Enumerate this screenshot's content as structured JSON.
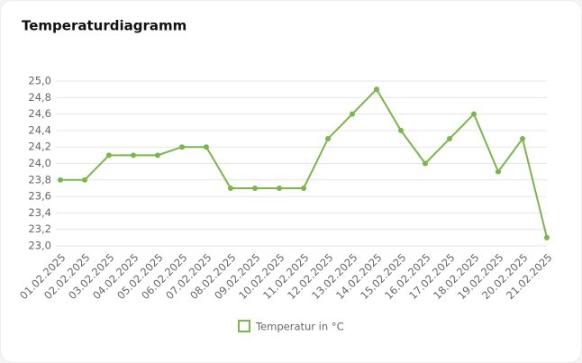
{
  "chart_data": {
    "type": "line",
    "title": "Temperaturdiagramm",
    "categories": [
      "01.02.2025",
      "02.02.2025",
      "03.02.2025",
      "04.02.2025",
      "05.02.2025",
      "06.02.2025",
      "07.02.2025",
      "08.02.2025",
      "09.02.2025",
      "10.02.2025",
      "11.02.2025",
      "12.02.2025",
      "13.02.2025",
      "14.02.2025",
      "15.02.2025",
      "16.02.2025",
      "17.02.2025",
      "18.02.2025",
      "19.02.2025",
      "20.02.2025",
      "21.02.2025"
    ],
    "series": [
      {
        "name": "Temperatur in °C",
        "color": "#7ab648",
        "values": [
          23.8,
          23.8,
          24.1,
          24.1,
          24.1,
          24.2,
          24.2,
          23.7,
          23.7,
          23.7,
          23.7,
          24.3,
          24.6,
          24.9,
          24.4,
          24.0,
          24.3,
          24.6,
          23.9,
          24.3,
          23.1
        ]
      }
    ],
    "ylim": [
      23.0,
      25.0
    ],
    "yticks": [
      {
        "value": 23.0,
        "label": "23,0"
      },
      {
        "value": 23.2,
        "label": "23,2"
      },
      {
        "value": 23.4,
        "label": "23,4"
      },
      {
        "value": 23.6,
        "label": "23,6"
      },
      {
        "value": 23.8,
        "label": "23,8"
      },
      {
        "value": 24.0,
        "label": "24,0"
      },
      {
        "value": 24.2,
        "label": "24,2"
      },
      {
        "value": 24.4,
        "label": "24,4"
      },
      {
        "value": 24.6,
        "label": "24,6"
      },
      {
        "value": 24.8,
        "label": "24,8"
      },
      {
        "value": 25.0,
        "label": "25,0"
      }
    ],
    "grid": true,
    "legend": "bottom"
  }
}
